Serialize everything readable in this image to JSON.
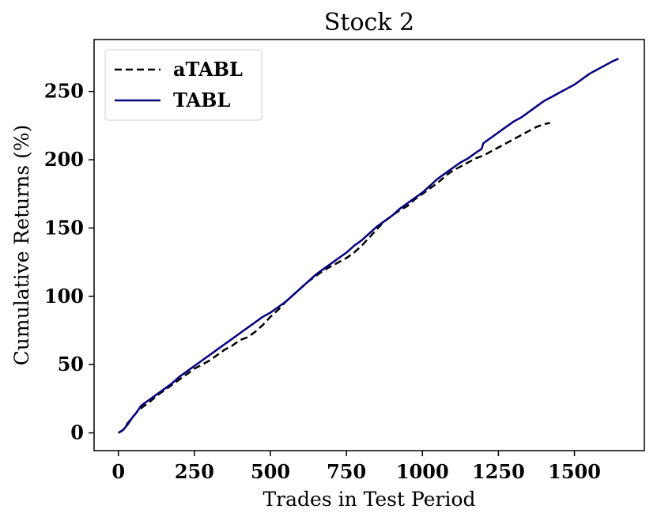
{
  "chart_data": {
    "type": "line",
    "title": "Stock 2",
    "xlabel": "Trades in Test Period",
    "ylabel": "Cumulative Returns (%)",
    "xlim": [
      -80,
      1730
    ],
    "ylim": [
      -13,
      288
    ],
    "xticks": [
      0,
      250,
      500,
      750,
      1000,
      1250,
      1500
    ],
    "yticks": [
      0,
      50,
      100,
      150,
      200,
      250
    ],
    "grid": false,
    "legend": "top-left",
    "series": [
      {
        "name": "aTABL",
        "color": "#000000",
        "dash": "dashed",
        "points": [
          [
            0,
            0
          ],
          [
            15,
            2
          ],
          [
            30,
            7
          ],
          [
            45,
            11
          ],
          [
            60,
            15
          ],
          [
            80,
            19
          ],
          [
            100,
            22
          ],
          [
            125,
            27
          ],
          [
            150,
            31
          ],
          [
            175,
            35
          ],
          [
            200,
            39
          ],
          [
            225,
            43
          ],
          [
            250,
            47
          ],
          [
            275,
            50
          ],
          [
            300,
            53
          ],
          [
            325,
            57
          ],
          [
            350,
            61
          ],
          [
            375,
            64
          ],
          [
            400,
            68
          ],
          [
            425,
            70
          ],
          [
            450,
            74
          ],
          [
            475,
            79
          ],
          [
            500,
            85
          ],
          [
            525,
            90
          ],
          [
            550,
            96
          ],
          [
            575,
            101
          ],
          [
            600,
            106
          ],
          [
            625,
            111
          ],
          [
            650,
            115
          ],
          [
            675,
            119
          ],
          [
            700,
            122
          ],
          [
            725,
            125
          ],
          [
            750,
            128
          ],
          [
            775,
            132
          ],
          [
            800,
            137
          ],
          [
            825,
            143
          ],
          [
            850,
            149
          ],
          [
            875,
            155
          ],
          [
            900,
            159
          ],
          [
            925,
            163
          ],
          [
            950,
            166
          ],
          [
            975,
            171
          ],
          [
            1000,
            175
          ],
          [
            1025,
            179
          ],
          [
            1050,
            183
          ],
          [
            1075,
            188
          ],
          [
            1100,
            192
          ],
          [
            1125,
            195
          ],
          [
            1150,
            198
          ],
          [
            1175,
            201
          ],
          [
            1200,
            203
          ],
          [
            1225,
            206
          ],
          [
            1250,
            209
          ],
          [
            1275,
            212
          ],
          [
            1300,
            215
          ],
          [
            1325,
            218
          ],
          [
            1350,
            221
          ],
          [
            1375,
            224
          ],
          [
            1400,
            226
          ],
          [
            1420,
            227
          ]
        ]
      },
      {
        "name": "TABL",
        "color": "#00007f",
        "dash": "solid",
        "points": [
          [
            0,
            0
          ],
          [
            15,
            2
          ],
          [
            30,
            6
          ],
          [
            45,
            11
          ],
          [
            60,
            15
          ],
          [
            75,
            20
          ],
          [
            100,
            24
          ],
          [
            125,
            28
          ],
          [
            150,
            32
          ],
          [
            175,
            36
          ],
          [
            200,
            41
          ],
          [
            225,
            45
          ],
          [
            250,
            49
          ],
          [
            275,
            53
          ],
          [
            300,
            57
          ],
          [
            325,
            61
          ],
          [
            350,
            65
          ],
          [
            375,
            69
          ],
          [
            400,
            73
          ],
          [
            425,
            77
          ],
          [
            450,
            81
          ],
          [
            475,
            85
          ],
          [
            500,
            88
          ],
          [
            525,
            92
          ],
          [
            550,
            96
          ],
          [
            575,
            101
          ],
          [
            600,
            106
          ],
          [
            625,
            111
          ],
          [
            650,
            116
          ],
          [
            675,
            120
          ],
          [
            700,
            124
          ],
          [
            725,
            128
          ],
          [
            750,
            132
          ],
          [
            775,
            137
          ],
          [
            800,
            141
          ],
          [
            825,
            146
          ],
          [
            850,
            151
          ],
          [
            875,
            155
          ],
          [
            900,
            159
          ],
          [
            925,
            164
          ],
          [
            950,
            168
          ],
          [
            975,
            172
          ],
          [
            1000,
            176
          ],
          [
            1025,
            181
          ],
          [
            1050,
            186
          ],
          [
            1075,
            190
          ],
          [
            1100,
            194
          ],
          [
            1125,
            198
          ],
          [
            1150,
            201
          ],
          [
            1175,
            205
          ],
          [
            1195,
            208
          ],
          [
            1200,
            212
          ],
          [
            1225,
            216
          ],
          [
            1250,
            220
          ],
          [
            1275,
            224
          ],
          [
            1300,
            228
          ],
          [
            1325,
            231
          ],
          [
            1350,
            235
          ],
          [
            1375,
            239
          ],
          [
            1400,
            243
          ],
          [
            1425,
            246
          ],
          [
            1450,
            249
          ],
          [
            1475,
            252
          ],
          [
            1500,
            255
          ],
          [
            1525,
            259
          ],
          [
            1550,
            263
          ],
          [
            1575,
            266
          ],
          [
            1600,
            269
          ],
          [
            1625,
            272
          ],
          [
            1645,
            274
          ]
        ]
      }
    ]
  }
}
